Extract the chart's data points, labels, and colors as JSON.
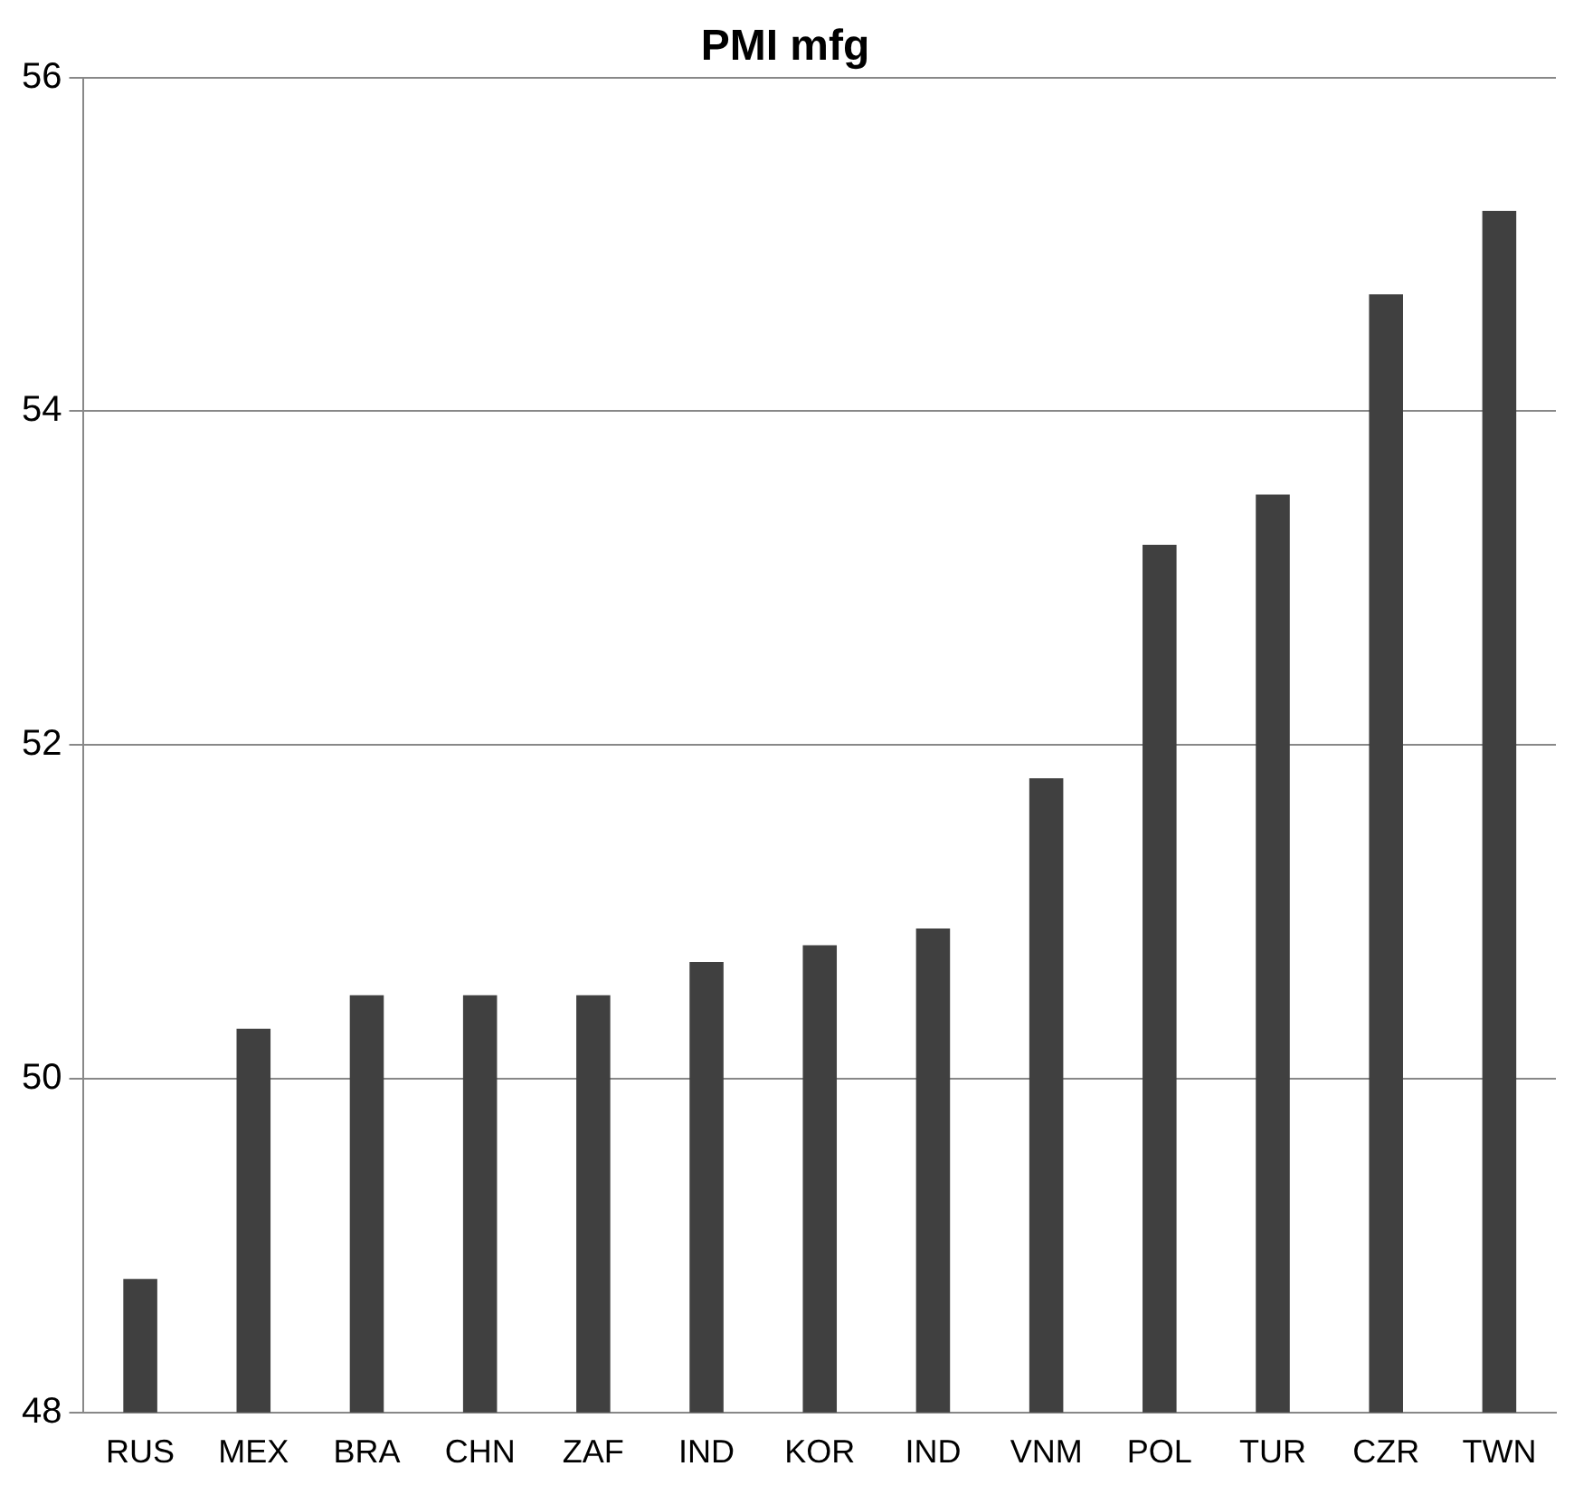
{
  "chart_data": {
    "type": "bar",
    "title": "PMI mfg",
    "categories": [
      "RUS",
      "MEX",
      "BRA",
      "CHN",
      "ZAF",
      "IND",
      "KOR",
      "IND",
      "VNM",
      "POL",
      "TUR",
      "CZR",
      "TWN"
    ],
    "values": [
      48.8,
      50.3,
      50.5,
      50.5,
      50.5,
      50.7,
      50.8,
      50.9,
      51.8,
      53.2,
      53.5,
      54.7,
      55.2
    ],
    "color": "#404040",
    "ylim": [
      48,
      56
    ],
    "yticks": [
      48,
      50,
      52,
      54,
      56
    ],
    "grid": "y",
    "legend": false
  }
}
